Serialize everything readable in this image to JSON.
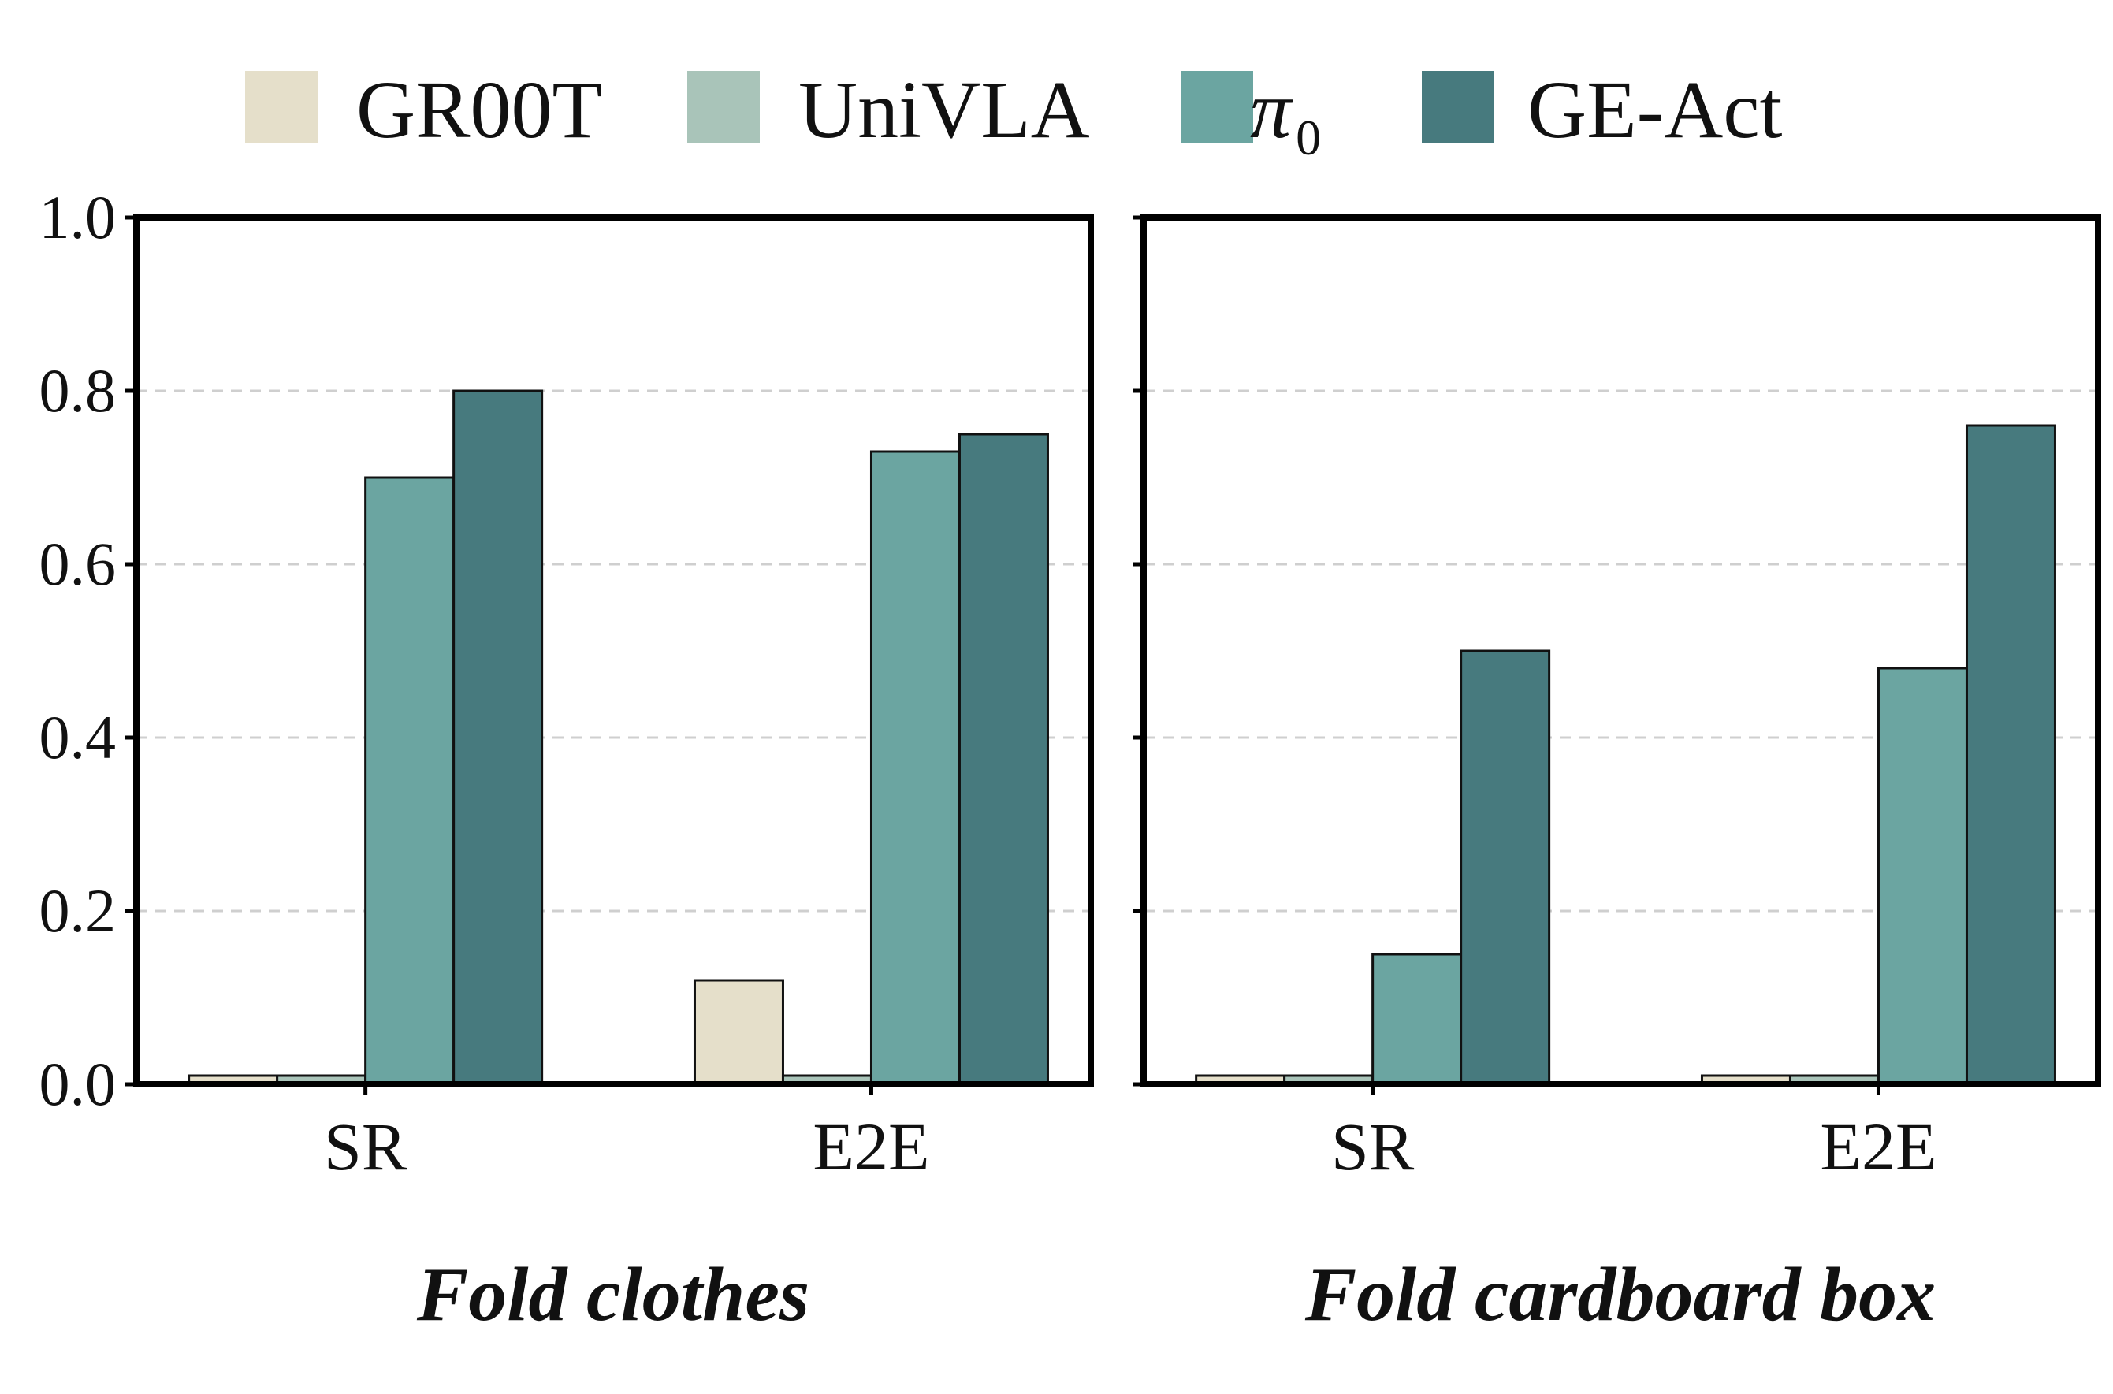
{
  "chart_data": [
    {
      "type": "bar",
      "title": "Fold clothes",
      "categories": [
        "SR",
        "E2E"
      ],
      "series": [
        {
          "name": "GR00T",
          "values": [
            0.01,
            0.12
          ]
        },
        {
          "name": "UniVLA",
          "values": [
            0.01,
            0.01
          ]
        },
        {
          "name": "π0",
          "values": [
            0.7,
            0.73
          ]
        },
        {
          "name": "GE-Act",
          "values": [
            0.8,
            0.75
          ]
        }
      ],
      "ylim": [
        0,
        1.0
      ],
      "yticks": [
        "0.0",
        "0.2",
        "0.4",
        "0.6",
        "0.8",
        "1.0"
      ],
      "grid": "horizontal dashed"
    },
    {
      "type": "bar",
      "title": "Fold cardboard box",
      "categories": [
        "SR",
        "E2E"
      ],
      "series": [
        {
          "name": "GR00T",
          "values": [
            0.01,
            0.01
          ]
        },
        {
          "name": "UniVLA",
          "values": [
            0.01,
            0.01
          ]
        },
        {
          "name": "π0",
          "values": [
            0.15,
            0.48
          ]
        },
        {
          "name": "GE-Act",
          "values": [
            0.5,
            0.76
          ]
        }
      ],
      "ylim": [
        0,
        1.0
      ],
      "grid": "horizontal dashed"
    }
  ],
  "legend": {
    "placement": "top-center",
    "items": [
      {
        "label": "GR00T",
        "color": "#e5dfca"
      },
      {
        "label": "UniVLA",
        "color": "#a9c4b9"
      },
      {
        "label": "π",
        "sub": "0",
        "color": "#6ba5a1"
      },
      {
        "label": "GE-Act",
        "color": "#477a7e"
      }
    ]
  }
}
